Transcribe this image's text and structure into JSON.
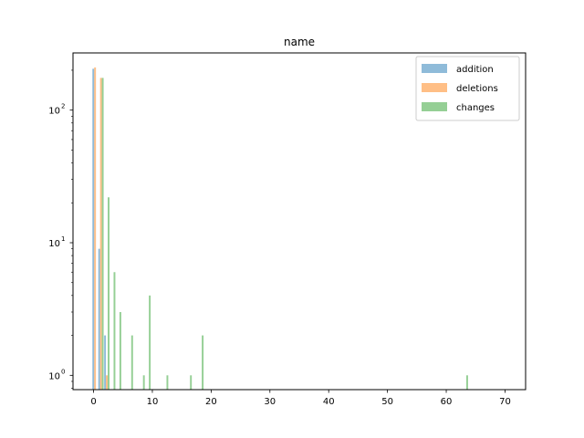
{
  "chart_data": {
    "type": "bar",
    "title": "name",
    "xlabel": "",
    "ylabel": "",
    "xlim": [
      -3.5,
      73.5
    ],
    "ylim": [
      0.78,
      270
    ],
    "yscale": "log",
    "xticks": [
      0,
      10,
      20,
      30,
      40,
      50,
      60,
      70
    ],
    "yticks": [
      {
        "value": 1,
        "label": "10",
        "exp": "0"
      },
      {
        "value": 10,
        "label": "10",
        "exp": "1"
      },
      {
        "value": 100,
        "label": "10",
        "exp": "2"
      }
    ],
    "grid": false,
    "legend_position": "upper right",
    "series": [
      {
        "name": "addition",
        "color": "#1f77b4",
        "points": [
          [
            0,
            205
          ],
          [
            1,
            9
          ],
          [
            2,
            2
          ]
        ]
      },
      {
        "name": "deletions",
        "color": "#ff7f0e",
        "points": [
          [
            0,
            210
          ],
          [
            1,
            175
          ],
          [
            2,
            1
          ]
        ]
      },
      {
        "name": "changes",
        "color": "#2ca02c",
        "points": [
          [
            1,
            175
          ],
          [
            2,
            22
          ],
          [
            3,
            6
          ],
          [
            4,
            3
          ],
          [
            6,
            2
          ],
          [
            8,
            1
          ],
          [
            9,
            4
          ],
          [
            12,
            1
          ],
          [
            16,
            1
          ],
          [
            18,
            2
          ],
          [
            63,
            1
          ]
        ]
      }
    ]
  }
}
